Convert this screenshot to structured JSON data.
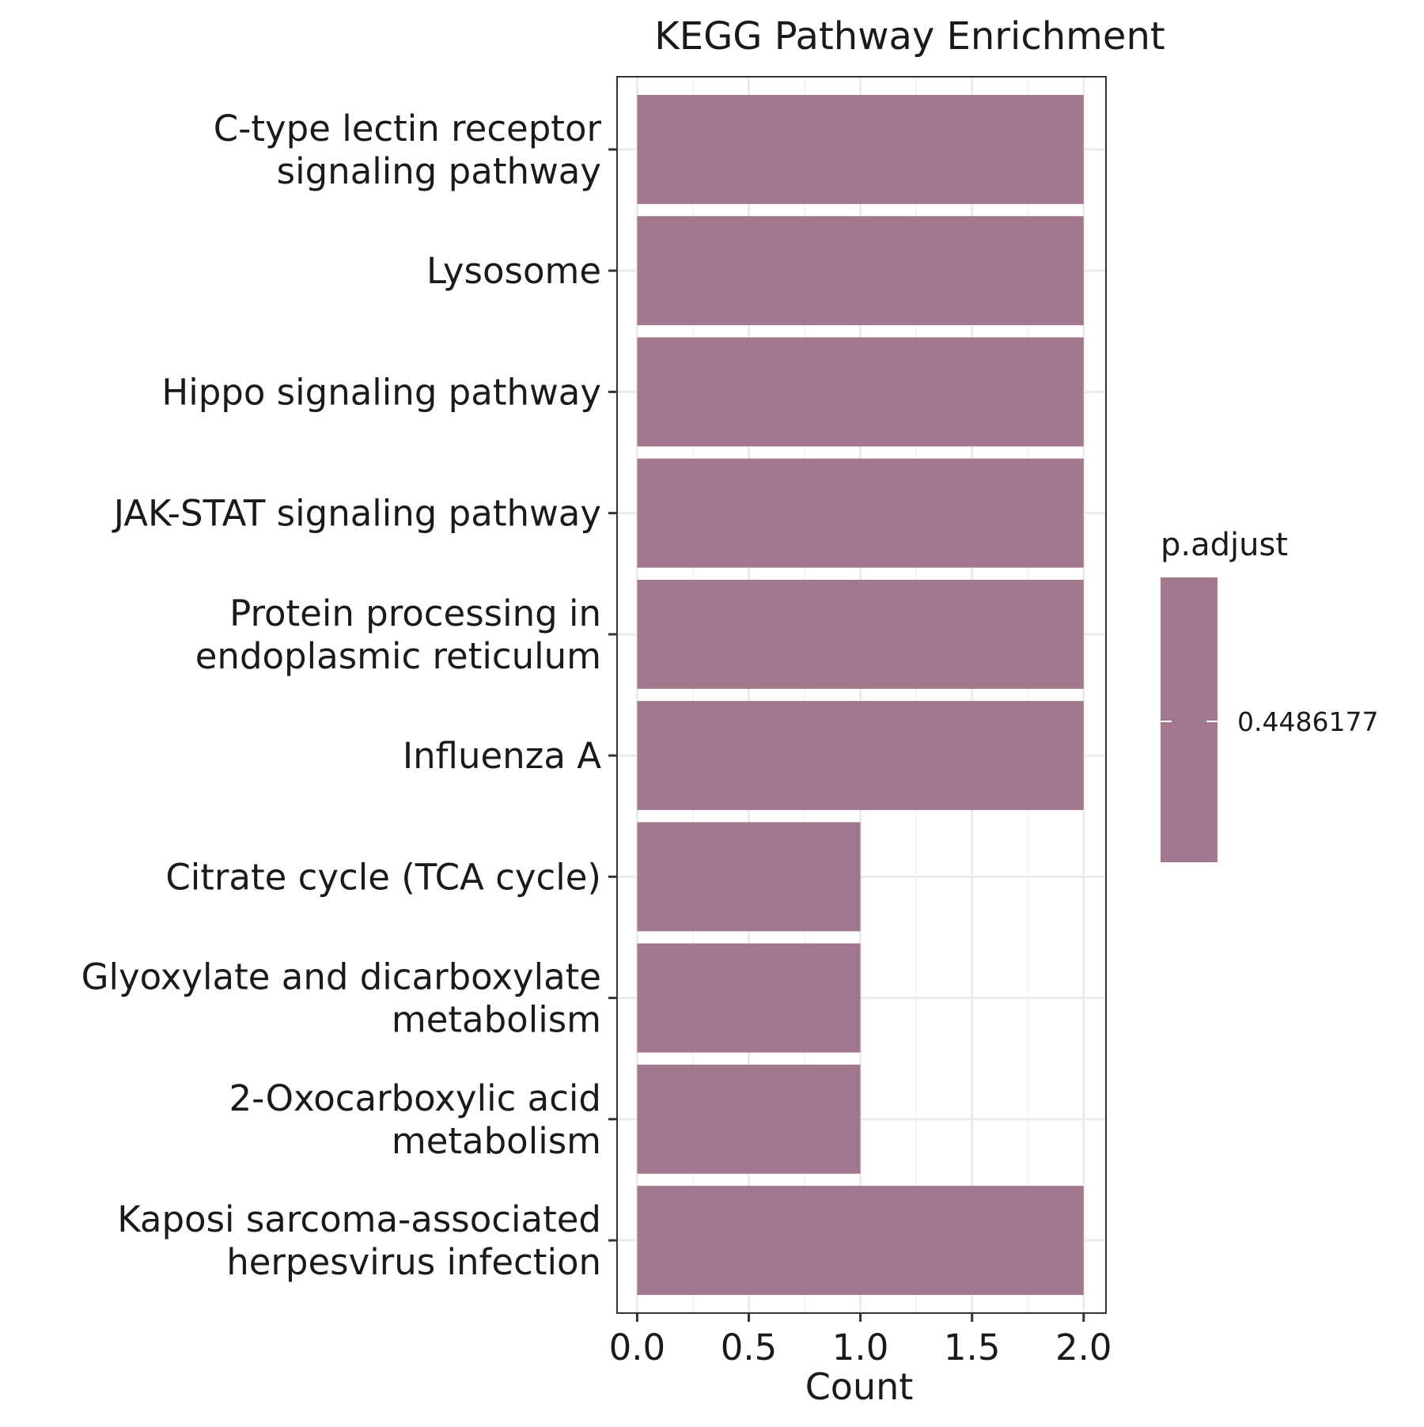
{
  "chart_data": {
    "type": "bar",
    "orientation": "horizontal",
    "title": "KEGG Pathway Enrichment",
    "xlabel": "Count",
    "ylabel": "",
    "xlim": [
      -0.09,
      2.1
    ],
    "x_ticks": [
      0.0,
      0.5,
      1.0,
      1.5,
      2.0
    ],
    "x_tick_labels": [
      "0.0",
      "0.5",
      "1.0",
      "1.5",
      "2.0"
    ],
    "grid": true,
    "categories": [
      [
        "C-type lectin receptor",
        "signaling pathway"
      ],
      [
        "Lysosome"
      ],
      [
        "Hippo signaling pathway"
      ],
      [
        "JAK-STAT signaling pathway"
      ],
      [
        "Protein processing in",
        "endoplasmic reticulum"
      ],
      [
        "Influenza A"
      ],
      [
        "Citrate cycle (TCA cycle)"
      ],
      [
        "Glyoxylate and dicarboxylate",
        "metabolism"
      ],
      [
        "2-Oxocarboxylic acid",
        "metabolism"
      ],
      [
        "Kaposi sarcoma-associated",
        "herpesvirus infection"
      ]
    ],
    "values": [
      2,
      2,
      2,
      2,
      2,
      2,
      1,
      1,
      1,
      2
    ],
    "bar_color": "#a3778e",
    "legend": {
      "title": "p.adjust",
      "placement": "right",
      "label": "0.4486177",
      "color": "#a3778e"
    }
  }
}
